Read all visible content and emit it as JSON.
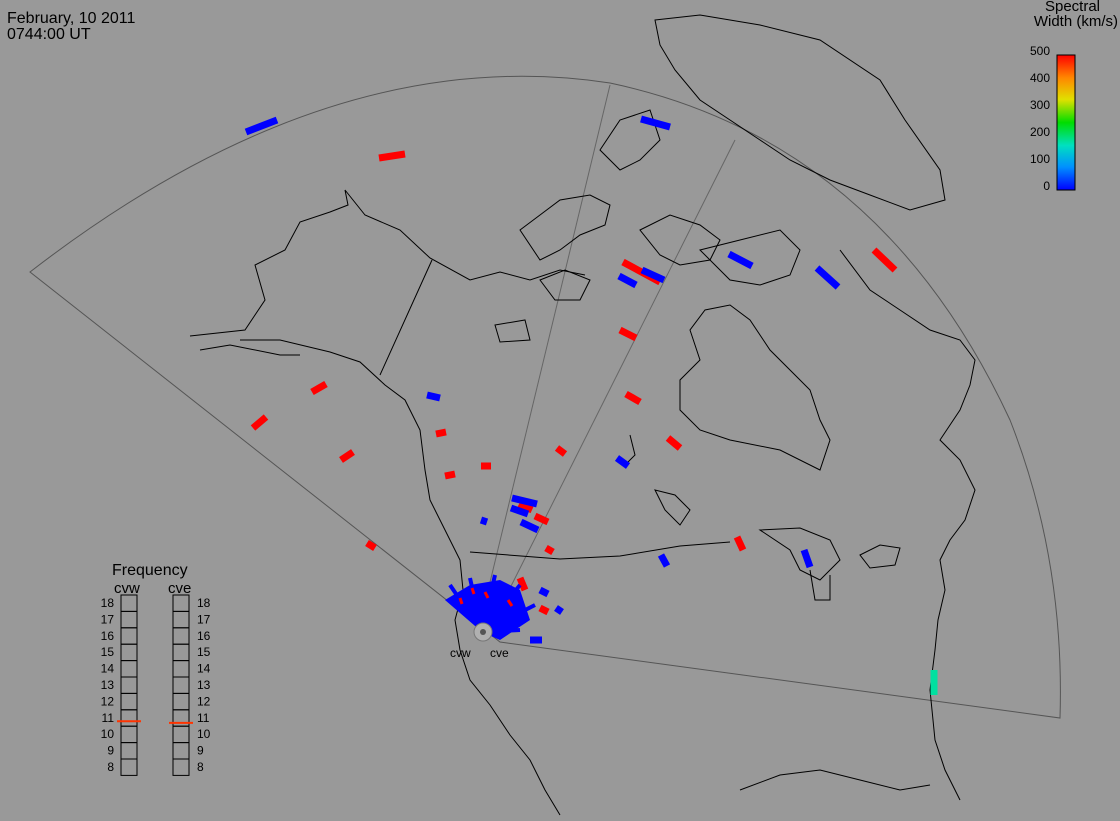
{
  "header": {
    "date": "February, 10 2011",
    "time": "0744:00 UT"
  },
  "colorbar": {
    "title_line1": "Spectral",
    "title_line2": "Width (km/s)",
    "ticks": [
      "500",
      "400",
      "300",
      "200",
      "100",
      "0"
    ],
    "colors": [
      "#0000ff",
      "#0090ff",
      "#00e0c0",
      "#00dd00",
      "#e0e000",
      "#ff8800",
      "#ff0000"
    ]
  },
  "frequency": {
    "title": "Frequency",
    "radars": [
      "cvw",
      "cve"
    ],
    "scale": [
      "18",
      "17",
      "16",
      "15",
      "14",
      "13",
      "12",
      "11",
      "10",
      "9",
      "8"
    ],
    "cvw_value_mhz": 10.8,
    "cve_value_mhz": 10.7,
    "marker_color": "#ff3300"
  },
  "sites": [
    {
      "label": "cvw"
    },
    {
      "label": "cve"
    }
  ],
  "colors": {
    "background": "#999999",
    "high_width": "#ff0000",
    "low_width": "#0000ff",
    "mid_width": "#00e0a0"
  }
}
